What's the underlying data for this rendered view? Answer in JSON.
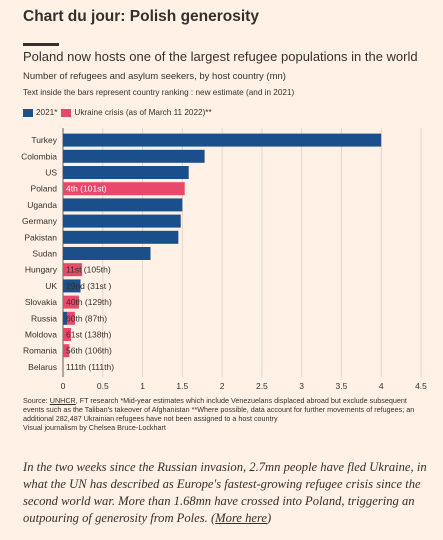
{
  "header": {
    "headline": "Chart du jour: Polish generosity"
  },
  "chart": {
    "title": "Poland now hosts one of the largest refugee populations in the world",
    "subtitle": "Number of refugees and asylum seekers, by host country (mn)",
    "note": "Text inside the bars represent country ranking : new estimate (and in 2021)",
    "legend": [
      {
        "label": "2021*",
        "color": "#1b4f8c"
      },
      {
        "label": "Ukraine crisis (as of March 11 2022)**",
        "color": "#e8496b"
      }
    ]
  },
  "chart_data": {
    "type": "bar",
    "orientation": "horizontal",
    "categories": [
      "Turkey",
      "Colombia",
      "US",
      "Poland",
      "Uganda",
      "Germany",
      "Pakistan",
      "Sudan",
      "Hungary",
      "UK",
      "Slovakia",
      "Russia",
      "Moldova",
      "Romania",
      "Belarus"
    ],
    "series": [
      {
        "name": "2021*",
        "values": [
          4.0,
          1.78,
          1.58,
          0.0,
          1.5,
          1.48,
          1.45,
          1.1,
          0.0,
          0.22,
          0.0,
          0.05,
          0.0,
          0.0,
          0.0
        ]
      },
      {
        "name": "Ukraine crisis (as of March 11 2022)**",
        "values": [
          0,
          0,
          0,
          1.53,
          0,
          0,
          0,
          0,
          0.24,
          0,
          0.2,
          0.1,
          0.1,
          0.08,
          0.0
        ]
      }
    ],
    "labels": [
      "",
      "",
      "",
      "4th (101st)",
      "",
      "",
      "",
      "",
      "11st (105th)",
      "29nd (31st )",
      "40th (129th)",
      "60th (87th)",
      "61st (138th)",
      "56th (106th)",
      "111th (111th)"
    ],
    "xticks": [
      "0",
      "0.5",
      "1",
      "1.5",
      "2",
      "2.5",
      "3",
      "3.5",
      "4",
      "4.5"
    ],
    "xlim": [
      0,
      4.5
    ],
    "grid": true,
    "legend_position": "top-left"
  },
  "footer": {
    "source_prefix": "Source: ",
    "source_link": "UNHCR",
    "source_rest": ", FT research *Mid-year estimates which include Venezuelans displaced abroad but exclude subsequent events such as the Taliban's takeover of Afghanistan **Where possible, data account for further movements of refugees; an additional 282,487 Ukrainian refugees have not been assigned to a host country",
    "credit": "Visual journalism by Chelsea Bruce-Lockhart"
  },
  "caption": {
    "text": "In the two weeks since the Russian invasion, 2.7mn people have fled Ukraine, in what the UN has described as Europe's fastest-growing refugee crisis since the second world war. More than 1.68mn have crossed into Poland, triggering an outpouring of generosity from Poles. (",
    "link": "More here",
    "close": ")"
  },
  "colors": {
    "background": "#fff1e5",
    "bar_2021": "#1b4f8c",
    "bar_ukraine": "#e8496b",
    "text": "#33302e",
    "grid": "#e3d6c8"
  }
}
